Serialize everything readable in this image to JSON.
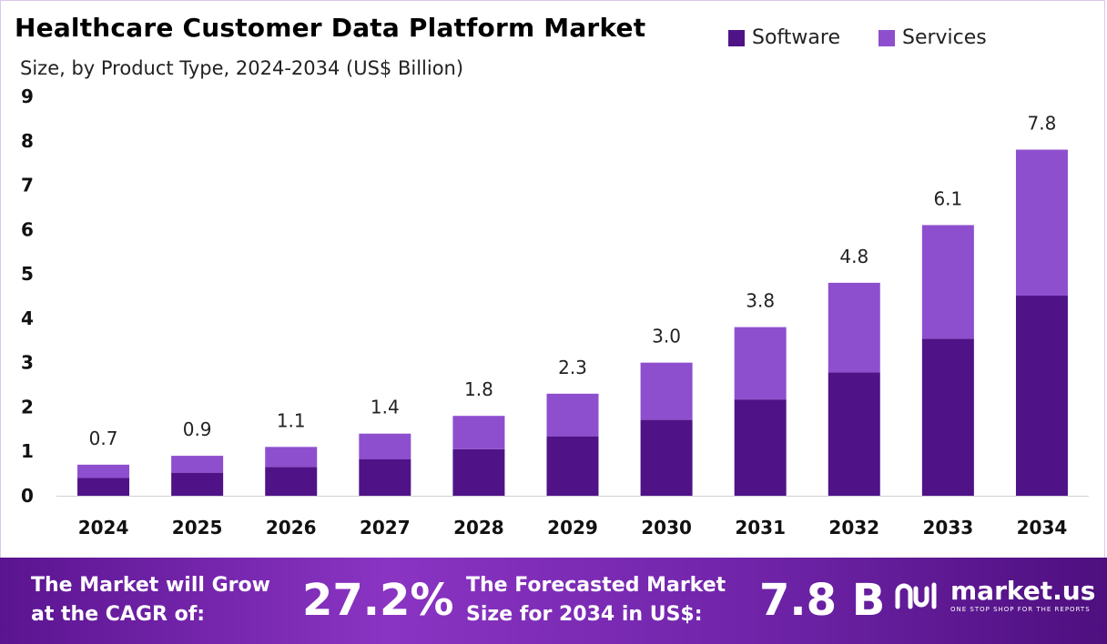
{
  "header": {
    "title": "Healthcare Customer Data Platform Market",
    "subtitle": "Size, by Product Type, 2024-2034 (US$ Billion)"
  },
  "legend": {
    "items": [
      {
        "label": "Software",
        "color": "#4f1387"
      },
      {
        "label": "Services",
        "color": "#8e4fce"
      }
    ]
  },
  "chart_data": {
    "type": "bar",
    "stacked": true,
    "categories": [
      "2024",
      "2025",
      "2026",
      "2027",
      "2028",
      "2029",
      "2030",
      "2031",
      "2032",
      "2033",
      "2034"
    ],
    "series": [
      {
        "name": "Software",
        "color": "#4f1387",
        "values": [
          0.4,
          0.52,
          0.65,
          0.82,
          1.05,
          1.34,
          1.71,
          2.17,
          2.78,
          3.54,
          4.51
        ]
      },
      {
        "name": "Services",
        "color": "#8e4fce",
        "values": [
          0.3,
          0.38,
          0.45,
          0.58,
          0.75,
          0.96,
          1.29,
          1.63,
          2.02,
          2.56,
          3.29
        ]
      }
    ],
    "totals": [
      "0.7",
      "0.9",
      "1.1",
      "1.4",
      "1.8",
      "2.3",
      "3.0",
      "3.8",
      "4.8",
      "6.1",
      "7.8"
    ],
    "ylim": [
      0,
      9
    ],
    "yticks": [
      "0",
      "1",
      "2",
      "3",
      "4",
      "5",
      "6",
      "7",
      "8",
      "9"
    ],
    "xlabel": "",
    "ylabel": "",
    "grid": false,
    "legend_position": "top-right"
  },
  "footer": {
    "cagr_text_line1": "The Market will Grow",
    "cagr_text_line2": "at the CAGR of:",
    "cagr_value": "27.2%",
    "forecast_text_line1": "The Forecasted Market",
    "forecast_text_line2": "Size for 2034 in US$:",
    "forecast_value": "7.8 B",
    "brand_name": "market.us",
    "brand_tagline": "ONE STOP SHOP FOR THE REPORTS"
  }
}
